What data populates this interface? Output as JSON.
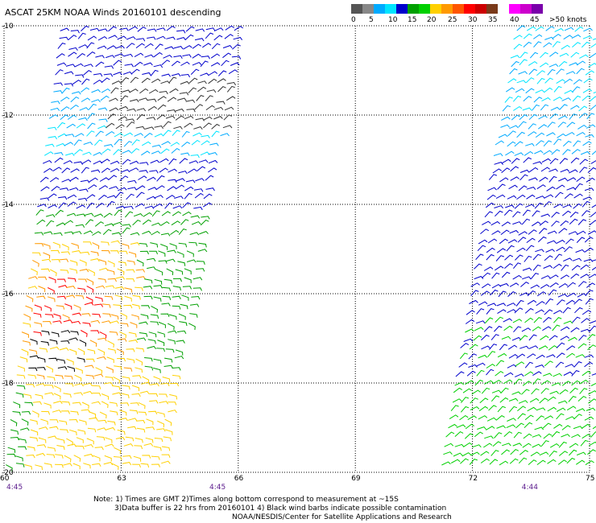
{
  "title": "ASCAT 25KM NOAA Winds 20160101 descending",
  "legend": {
    "colors": [
      "#555555",
      "#888888",
      "#00aaff",
      "#00e5ff",
      "#0000cc",
      "#00a000",
      "#00d000",
      "#ffd000",
      "#ff9900",
      "#ff5500",
      "#ff0000",
      "#cc0000",
      "#7a3a1a",
      "#ffffff",
      "#ff00ff",
      "#cc00cc",
      "#7a00aa"
    ],
    "labels": [
      "0",
      "5",
      "10",
      "15",
      "20",
      "25",
      "30",
      "35",
      "40",
      "45",
      ">50 knots"
    ]
  },
  "axes": {
    "lat_labels": [
      "-10",
      "-12",
      "-14",
      "-16",
      "-18",
      "-20"
    ],
    "lon_labels": [
      "60",
      "63",
      "66",
      "69",
      "72",
      "75"
    ]
  },
  "times": [
    {
      "text": "4:45",
      "lon": 60
    },
    {
      "text": "4:45",
      "lon": 65.2
    },
    {
      "text": "4:44",
      "lon": 73.2
    }
  ],
  "notes": [
    "Note: 1) Times are GMT 2)Times along bottom correspond to measurement at ~15S",
    "3)Data buffer is 22 hrs from 20160101 4) Black wind barbs indicate possible contamination",
    "NOAA/NESDIS/Center for Satellite Applications and Research"
  ],
  "swaths": [
    {
      "name": "west-swath"
    },
    {
      "name": "east-swath"
    }
  ]
}
